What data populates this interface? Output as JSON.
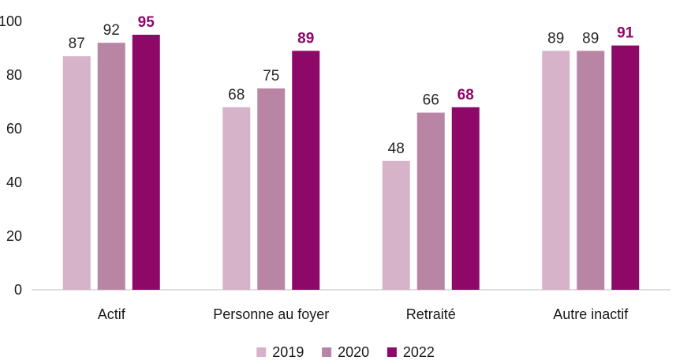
{
  "chart_data": {
    "type": "bar",
    "title": "",
    "xlabel": "",
    "ylabel": "",
    "ylim": [
      0,
      100
    ],
    "yticks": [
      0,
      20,
      40,
      60,
      80,
      100
    ],
    "grid": false,
    "legend_position": "bottom",
    "categories": [
      "Actif",
      "Personne au foyer",
      "Retraité",
      "Autre inactif"
    ],
    "series": [
      {
        "name": "2019",
        "color": "#d6b3c9",
        "label_color": "#262626",
        "label_bold": false,
        "values": [
          87,
          68,
          48,
          89
        ]
      },
      {
        "name": "2020",
        "color": "#b985a5",
        "label_color": "#262626",
        "label_bold": false,
        "values": [
          92,
          75,
          66,
          89
        ]
      },
      {
        "name": "2022",
        "color": "#8e0868",
        "label_color": "#8e0868",
        "label_bold": true,
        "values": [
          95,
          89,
          68,
          91
        ]
      }
    ]
  }
}
